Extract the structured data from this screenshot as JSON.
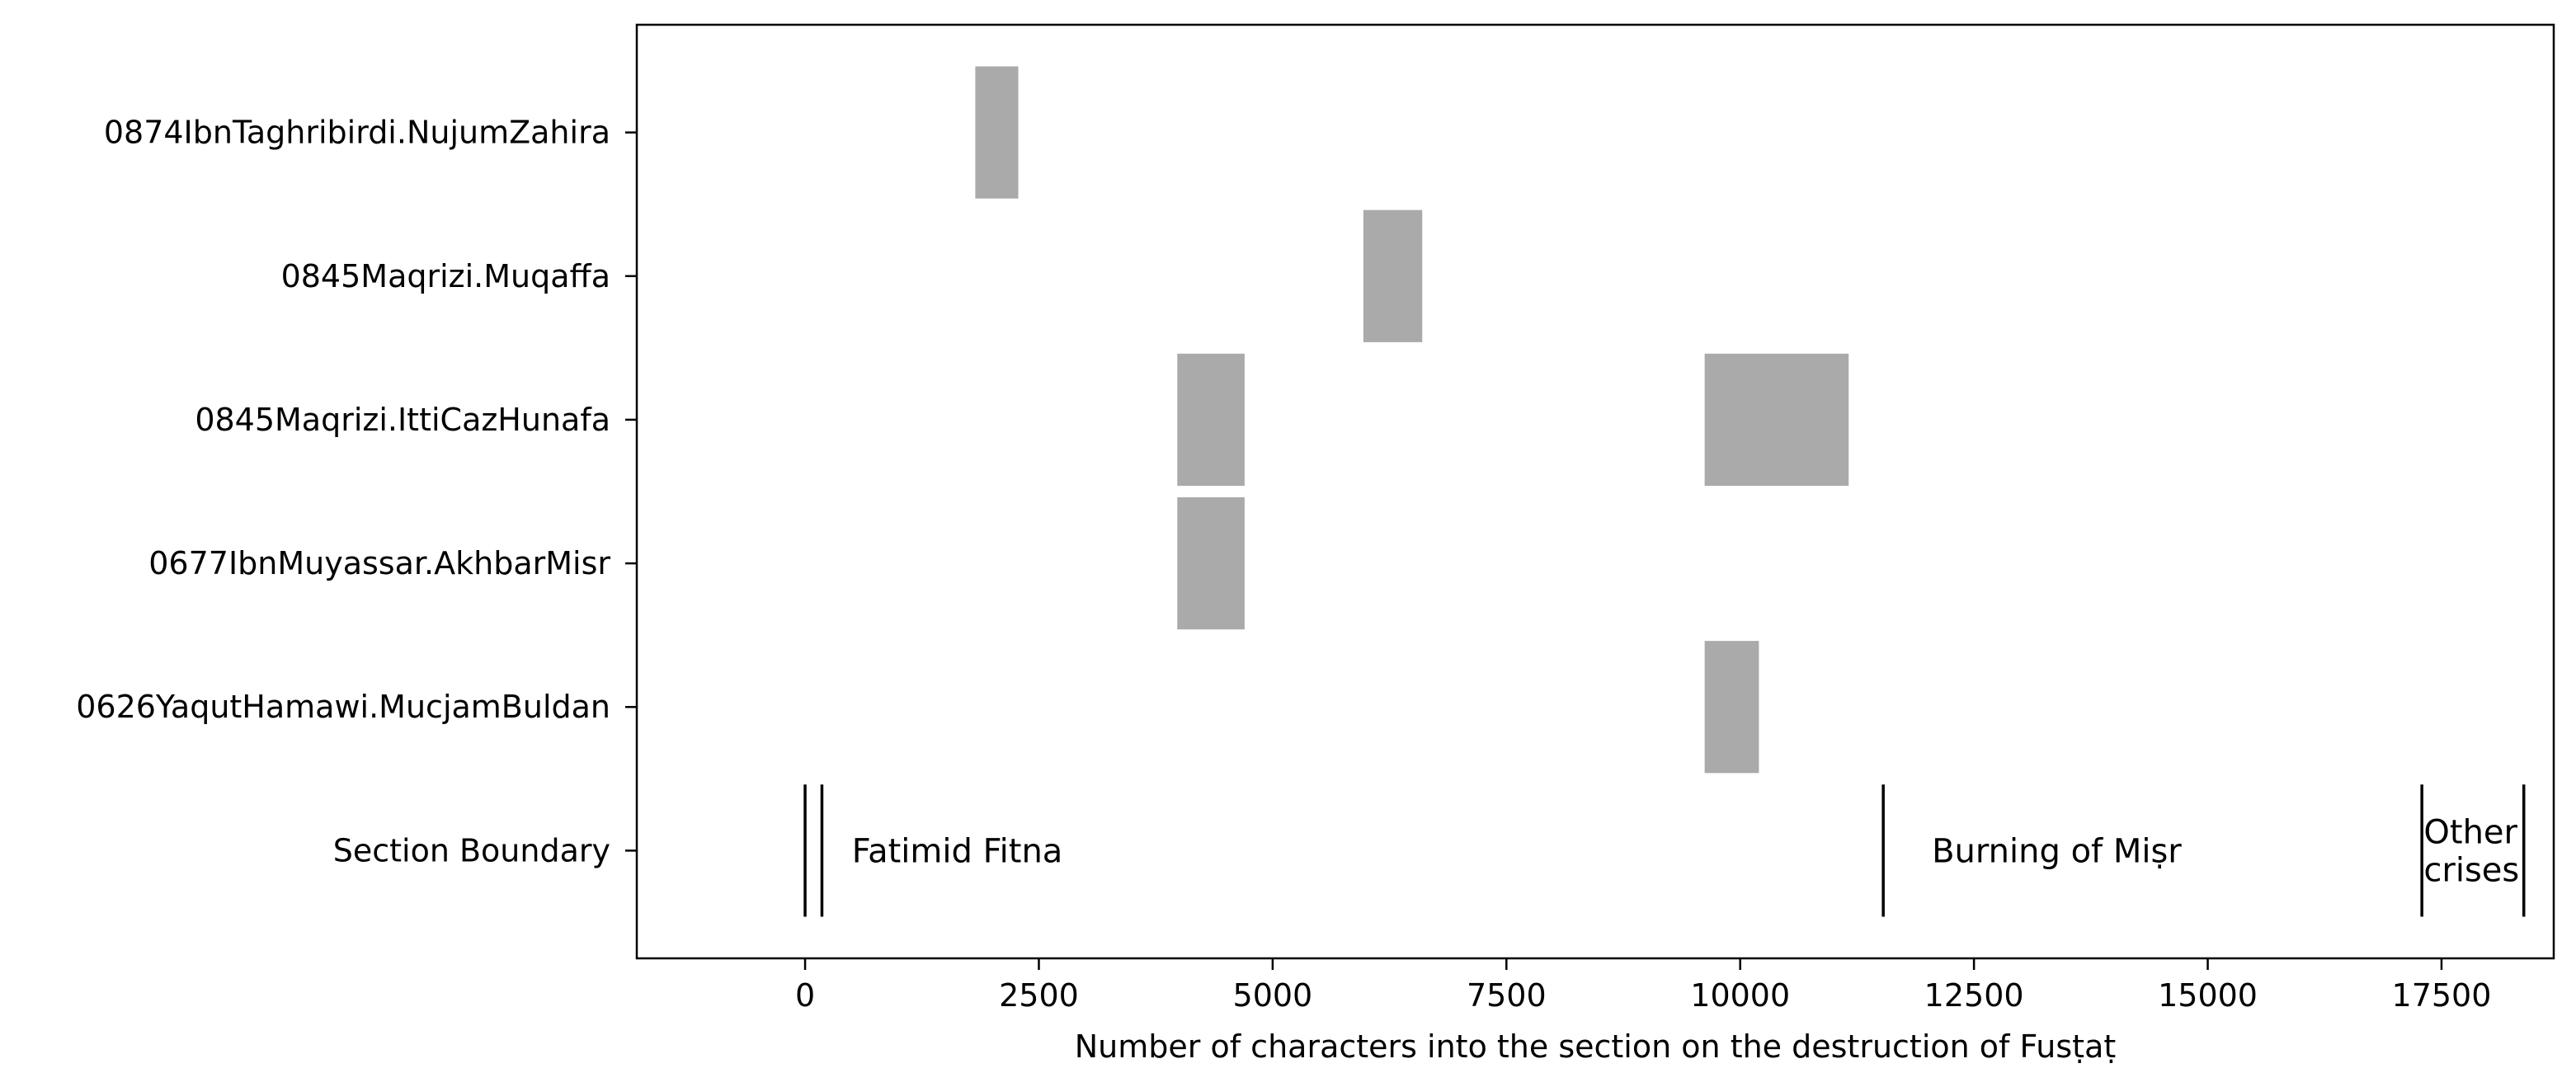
{
  "chart_data": {
    "type": "bar",
    "orientation": "horizontal-ranges",
    "xlabel": "Number of characters into the section on the destruction of Fusṭaṭ",
    "ylabel": "",
    "xlim": [
      -1800,
      18700
    ],
    "x_ticks": [
      0,
      2500,
      5000,
      7500,
      10000,
      12500,
      15000,
      17500
    ],
    "grid": false,
    "bar_color": "#aaaaaa",
    "rows": [
      {
        "label": "0874IbnTaghribirdi.NujumZahira",
        "ranges": [
          [
            1820,
            2280
          ]
        ]
      },
      {
        "label": "0845Maqrizi.Muqaffa",
        "ranges": [
          [
            5970,
            6600
          ]
        ]
      },
      {
        "label": "0845Maqrizi.IttiCazHunafa",
        "ranges": [
          [
            3980,
            4700
          ],
          [
            9620,
            11160
          ]
        ]
      },
      {
        "label": "0677IbnMuyassar.AkhbarMisr",
        "ranges": [
          [
            3980,
            4700
          ]
        ]
      },
      {
        "label": "0626YaqutHamawi.MucjamBuldan",
        "ranges": [
          [
            9620,
            10200
          ]
        ]
      },
      {
        "label": "Section Boundary",
        "ranges": []
      }
    ],
    "section_boundaries": [
      0,
      180,
      11530,
      17290,
      18380
    ],
    "sections": [
      {
        "name": "Fatimid Fitna",
        "x": 500
      },
      {
        "name": "Burning of Miṣr",
        "x": 12050
      },
      {
        "name": "Other\ncrises",
        "x": 17310
      }
    ]
  }
}
